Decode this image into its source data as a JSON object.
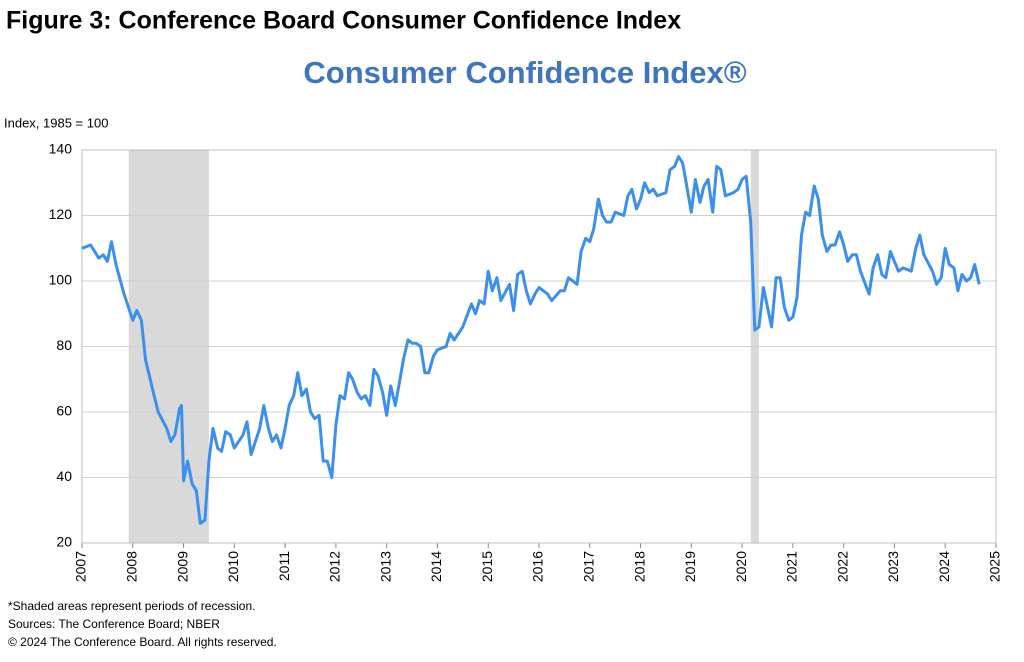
{
  "figure_caption": "Figure 3: Conference Board Consumer Confidence Index",
  "chart_data": {
    "type": "line",
    "title": "Consumer Confidence Index®",
    "y_label": "Index, 1985 = 100",
    "x": [
      2007.0,
      2007.17,
      2007.33,
      2007.42,
      2007.5,
      2007.58,
      2007.67,
      2007.83,
      2008.0,
      2008.08,
      2008.17,
      2008.25,
      2008.42,
      2008.5,
      2008.67,
      2008.75,
      2008.83,
      2008.92,
      2008.96,
      2009.0,
      2009.08,
      2009.17,
      2009.25,
      2009.33,
      2009.42,
      2009.5,
      2009.58,
      2009.67,
      2009.75,
      2009.83,
      2009.92,
      2010.0,
      2010.17,
      2010.25,
      2010.33,
      2010.5,
      2010.58,
      2010.67,
      2010.75,
      2010.83,
      2010.92,
      2011.0,
      2011.08,
      2011.17,
      2011.25,
      2011.33,
      2011.42,
      2011.5,
      2011.58,
      2011.67,
      2011.75,
      2011.83,
      2011.92,
      2012.0,
      2012.08,
      2012.17,
      2012.25,
      2012.33,
      2012.42,
      2012.5,
      2012.58,
      2012.67,
      2012.75,
      2012.83,
      2012.92,
      2013.0,
      2013.08,
      2013.17,
      2013.25,
      2013.33,
      2013.42,
      2013.5,
      2013.58,
      2013.67,
      2013.75,
      2013.83,
      2013.92,
      2014.0,
      2014.17,
      2014.25,
      2014.33,
      2014.5,
      2014.67,
      2014.75,
      2014.83,
      2014.92,
      2015.0,
      2015.08,
      2015.17,
      2015.25,
      2015.42,
      2015.5,
      2015.58,
      2015.67,
      2015.75,
      2015.83,
      2015.92,
      2016.0,
      2016.17,
      2016.25,
      2016.42,
      2016.5,
      2016.58,
      2016.75,
      2016.83,
      2016.92,
      2017.0,
      2017.08,
      2017.17,
      2017.25,
      2017.33,
      2017.42,
      2017.5,
      2017.67,
      2017.75,
      2017.83,
      2017.92,
      2018.0,
      2018.08,
      2018.17,
      2018.25,
      2018.33,
      2018.5,
      2018.58,
      2018.67,
      2018.75,
      2018.83,
      2018.92,
      2019.0,
      2019.08,
      2019.17,
      2019.25,
      2019.33,
      2019.42,
      2019.5,
      2019.58,
      2019.67,
      2019.83,
      2019.92,
      2020.0,
      2020.08,
      2020.17,
      2020.25,
      2020.33,
      2020.42,
      2020.5,
      2020.58,
      2020.67,
      2020.75,
      2020.83,
      2020.92,
      2021.0,
      2021.08,
      2021.17,
      2021.25,
      2021.33,
      2021.42,
      2021.5,
      2021.58,
      2021.67,
      2021.75,
      2021.83,
      2021.92,
      2022.0,
      2022.08,
      2022.17,
      2022.25,
      2022.33,
      2022.5,
      2022.58,
      2022.67,
      2022.75,
      2022.83,
      2022.92,
      2023.0,
      2023.08,
      2023.17,
      2023.33,
      2023.42,
      2023.5,
      2023.58,
      2023.75,
      2023.83,
      2023.92,
      2024.0,
      2024.08,
      2024.17,
      2024.25,
      2024.33,
      2024.42,
      2024.5,
      2024.58,
      2024.67
    ],
    "series": [
      {
        "color": "#3a8ff0",
        "values": [
          110,
          111,
          107,
          108,
          106,
          112,
          105,
          96,
          88,
          91,
          88,
          76,
          65,
          60,
          55,
          51,
          53,
          61,
          62,
          39,
          45,
          38,
          36,
          26,
          27,
          45,
          55,
          49,
          48,
          54,
          53,
          49,
          53,
          57,
          47,
          55,
          62,
          55,
          51,
          53,
          49,
          55,
          62,
          65,
          72,
          65,
          67,
          60,
          58,
          59,
          45,
          45,
          40,
          56,
          65,
          64,
          72,
          70,
          66,
          64,
          65,
          62,
          73,
          71,
          66,
          59,
          68,
          62,
          69,
          76,
          82,
          81,
          81,
          80,
          72,
          72,
          77,
          79,
          80,
          84,
          82,
          86,
          93,
          90,
          94,
          93,
          103,
          97,
          101,
          94,
          99,
          91,
          102,
          103,
          97,
          93,
          96,
          98,
          96,
          94,
          97,
          97,
          101,
          99,
          109,
          113,
          112,
          116,
          125,
          120,
          118,
          118,
          121,
          120,
          126,
          128,
          122,
          125,
          130,
          127,
          128,
          126,
          127,
          134,
          135,
          138,
          136,
          128,
          121,
          131,
          124,
          129,
          131,
          121,
          135,
          134,
          126,
          127,
          128,
          131,
          132,
          118,
          85,
          86,
          98,
          92,
          86,
          101,
          101,
          92,
          88,
          89,
          95,
          114,
          121,
          120,
          129,
          125,
          114,
          109,
          111,
          111,
          115,
          111,
          106,
          108,
          108,
          103,
          96,
          104,
          108,
          102,
          101,
          109,
          106,
          103,
          104,
          103,
          110,
          114,
          108,
          103,
          99,
          101,
          110,
          105,
          104,
          97,
          102,
          100,
          101,
          105,
          99
        ]
      }
    ],
    "shaded_ranges": [
      [
        2007.92,
        2009.5
      ],
      [
        2020.17,
        2020.33
      ]
    ],
    "shade_color": "#d9d9d9",
    "xlim": [
      2007,
      2025
    ],
    "xticks": [
      2007,
      2008,
      2009,
      2010,
      2011,
      2012,
      2013,
      2014,
      2015,
      2016,
      2017,
      2018,
      2019,
      2020,
      2021,
      2022,
      2023,
      2024,
      2025
    ],
    "ylim": [
      20,
      140
    ],
    "yticks": [
      20,
      40,
      60,
      80,
      100,
      120,
      140
    ],
    "grid": true,
    "notes": [
      "*Shaded areas represent periods of recession.",
      "Sources: The Conference Board;  NBER",
      "© 2024 The Conference Board. All rights reserved."
    ]
  }
}
